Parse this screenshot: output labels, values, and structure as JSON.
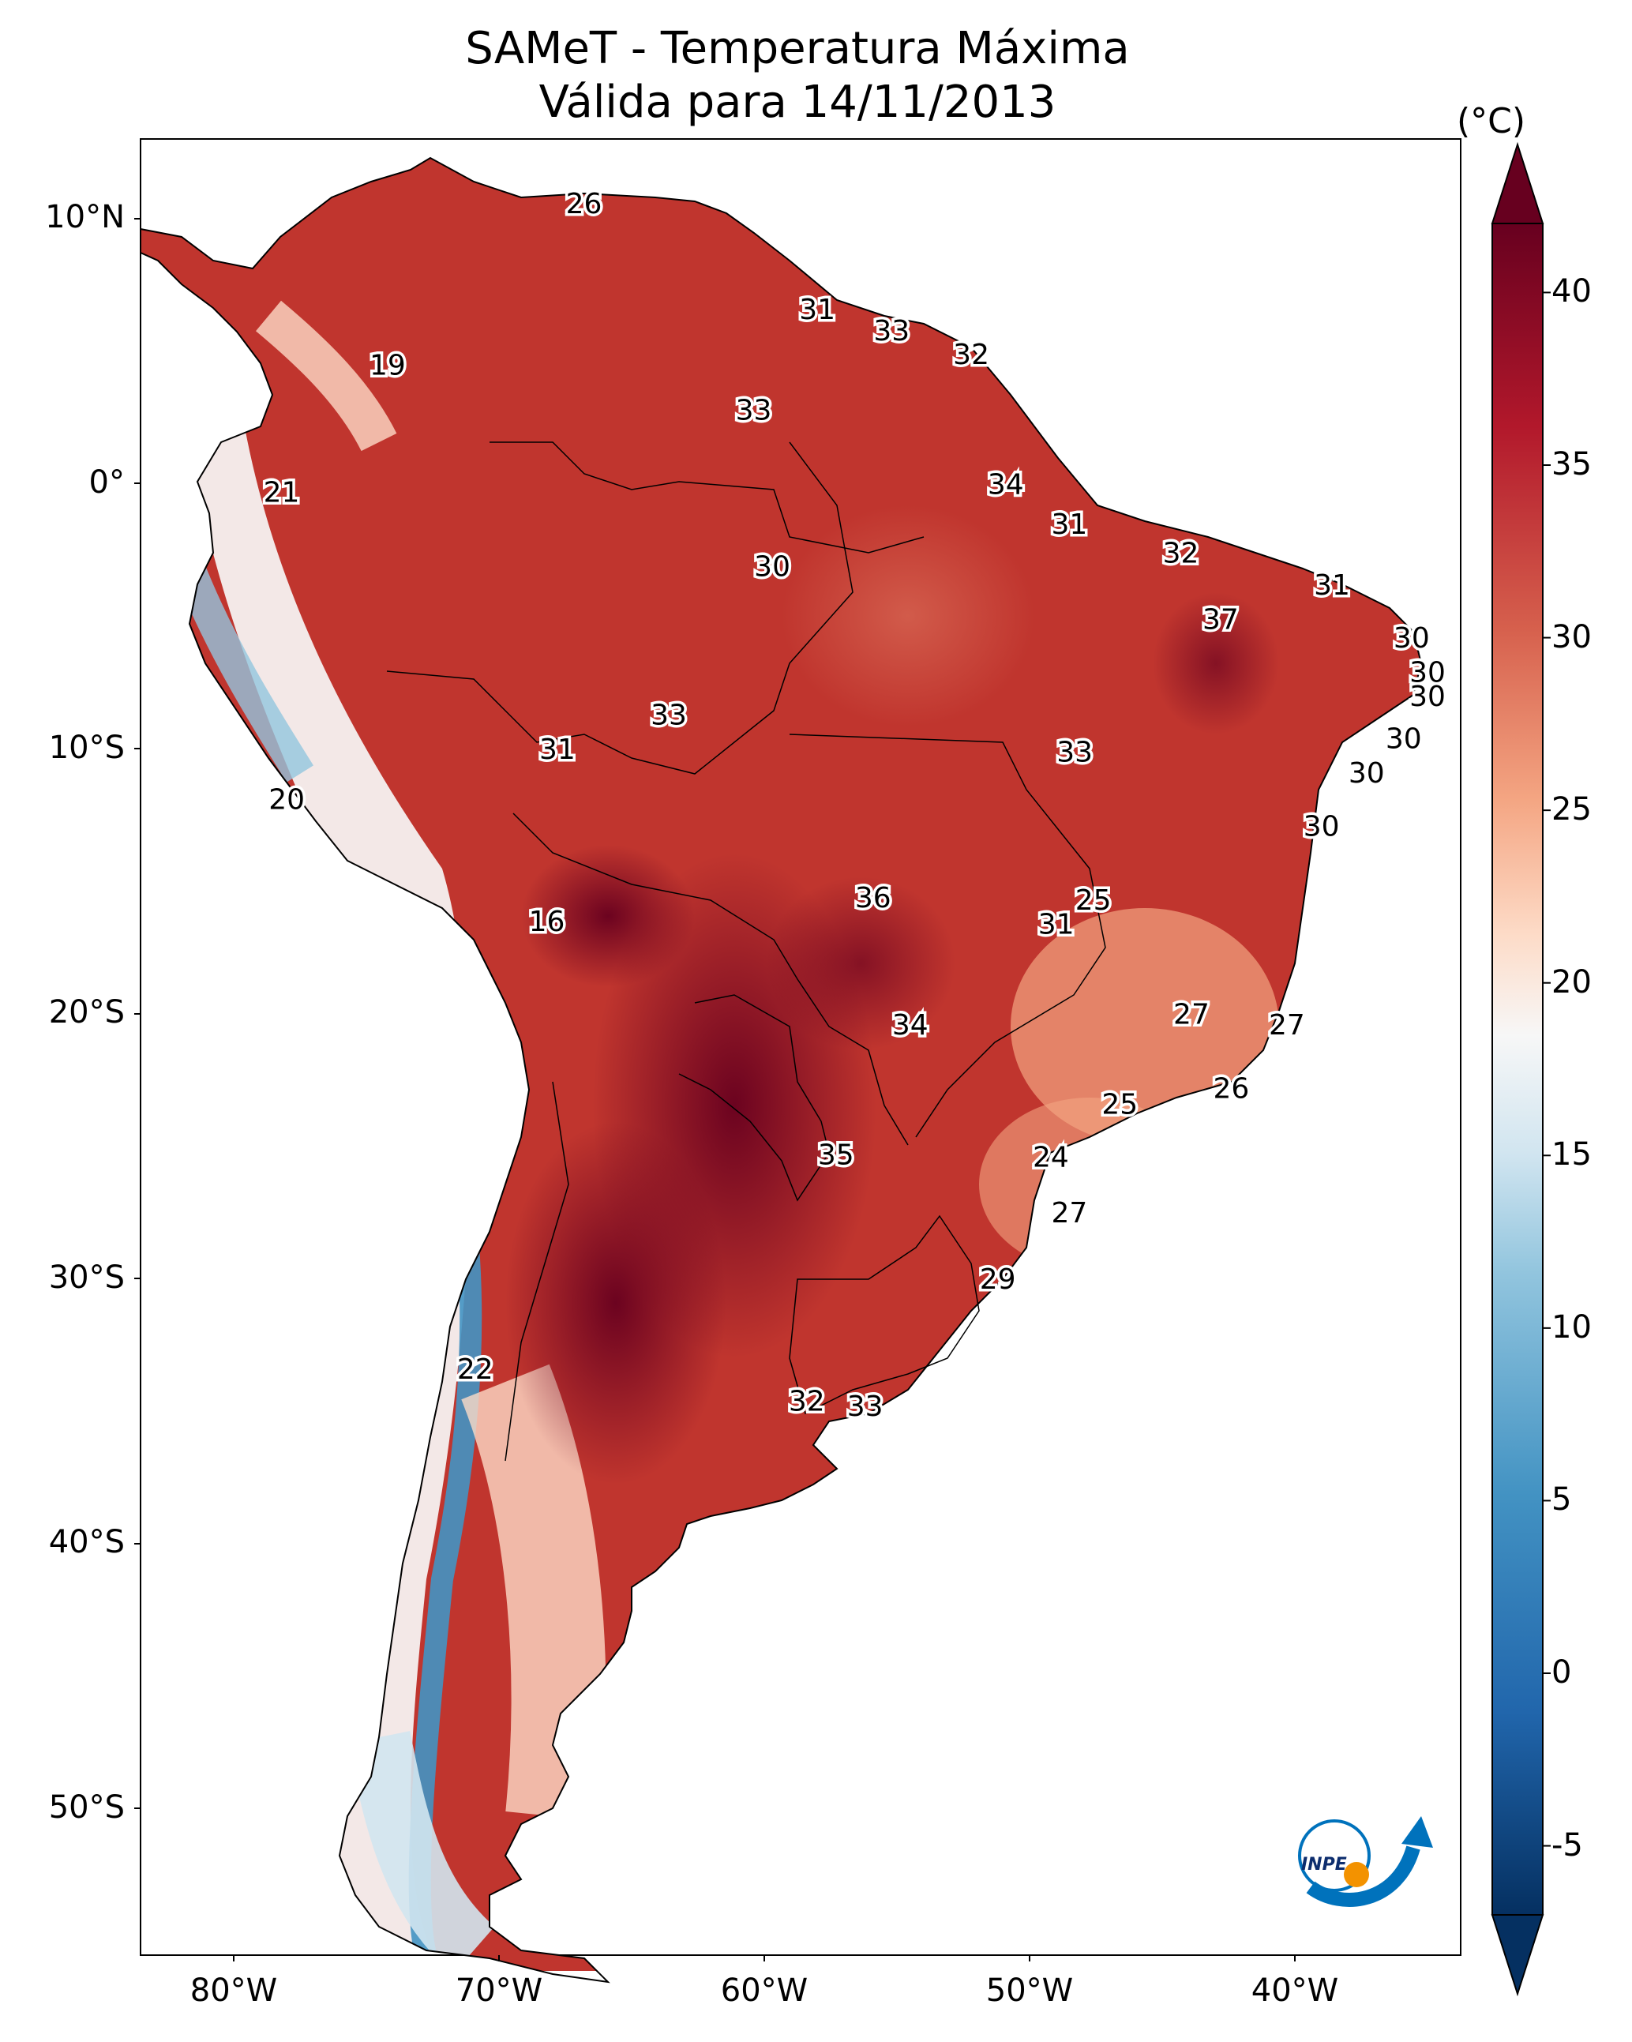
{
  "title": {
    "line1": "SAMeT - Temperatura Máxima",
    "line2": "Válida para 14/11/2013"
  },
  "map": {
    "lat_labels": [
      "10°N",
      "0°",
      "10°S",
      "20°S",
      "30°S",
      "40°S",
      "50°S"
    ],
    "lon_labels": [
      "80°W",
      "70°W",
      "60°W",
      "50°W",
      "40°W"
    ],
    "station_values": [
      {
        "value": "26",
        "lon": -66.8,
        "lat": 10.6
      },
      {
        "value": "19",
        "lon": -74.2,
        "lat": 4.5
      },
      {
        "value": "21",
        "lon": -78.2,
        "lat": -0.3
      },
      {
        "value": "31",
        "lon": -58.0,
        "lat": 6.6
      },
      {
        "value": "33",
        "lon": -55.2,
        "lat": 5.8
      },
      {
        "value": "32",
        "lon": -52.2,
        "lat": 4.9
      },
      {
        "value": "33",
        "lon": -60.4,
        "lat": 2.8
      },
      {
        "value": "34",
        "lon": -50.9,
        "lat": 0.0
      },
      {
        "value": "31",
        "lon": -48.5,
        "lat": -1.5
      },
      {
        "value": "30",
        "lon": -59.7,
        "lat": -3.1
      },
      {
        "value": "32",
        "lon": -44.3,
        "lat": -2.6
      },
      {
        "value": "31",
        "lon": -38.6,
        "lat": -3.8
      },
      {
        "value": "37",
        "lon": -42.8,
        "lat": -5.1
      },
      {
        "value": "30",
        "lon": -35.6,
        "lat": -5.8
      },
      {
        "value": "30",
        "lon": -35.0,
        "lat": -7.1
      },
      {
        "value": "30",
        "lon": -35.0,
        "lat": -8.0
      },
      {
        "value": "33",
        "lon": -63.6,
        "lat": -8.7
      },
      {
        "value": "31",
        "lon": -67.8,
        "lat": -10.0
      },
      {
        "value": "33",
        "lon": -48.3,
        "lat": -10.1
      },
      {
        "value": "30",
        "lon": -35.9,
        "lat": -9.6
      },
      {
        "value": "30",
        "lon": -37.3,
        "lat": -10.9
      },
      {
        "value": "20",
        "lon": -78.0,
        "lat": -11.9
      },
      {
        "value": "30",
        "lon": -39.0,
        "lat": -12.9
      },
      {
        "value": "36",
        "lon": -55.9,
        "lat": -15.6
      },
      {
        "value": "25",
        "lon": -47.6,
        "lat": -15.7
      },
      {
        "value": "31",
        "lon": -49.0,
        "lat": -16.6
      },
      {
        "value": "16",
        "lon": -68.2,
        "lat": -16.5
      },
      {
        "value": "27",
        "lon": -43.9,
        "lat": -20.0
      },
      {
        "value": "27",
        "lon": -40.3,
        "lat": -20.4
      },
      {
        "value": "34",
        "lon": -54.5,
        "lat": -20.4
      },
      {
        "value": "26",
        "lon": -42.4,
        "lat": -22.8
      },
      {
        "value": "25",
        "lon": -46.6,
        "lat": -23.4
      },
      {
        "value": "35",
        "lon": -57.3,
        "lat": -25.3
      },
      {
        "value": "24",
        "lon": -49.2,
        "lat": -25.4
      },
      {
        "value": "27",
        "lon": -48.5,
        "lat": -27.5
      },
      {
        "value": "29",
        "lon": -51.2,
        "lat": -30.0
      },
      {
        "value": "22",
        "lon": -70.9,
        "lat": -33.4
      },
      {
        "value": "32",
        "lon": -58.4,
        "lat": -34.6
      },
      {
        "value": "33",
        "lon": -56.2,
        "lat": -34.8
      }
    ]
  },
  "colorbar": {
    "units": "(°C)",
    "tick_labels": [
      "40",
      "35",
      "30",
      "25",
      "20",
      "15",
      "10",
      "5",
      "0",
      "-5"
    ],
    "min": -7,
    "max": 42,
    "colors": [
      "#053061",
      "#2166ac",
      "#4393c3",
      "#92c5de",
      "#d1e5f0",
      "#f7f7f7",
      "#fddbc7",
      "#f4a582",
      "#d6604d",
      "#b2182b",
      "#67001f"
    ]
  },
  "logo": {
    "text": "INPE"
  }
}
